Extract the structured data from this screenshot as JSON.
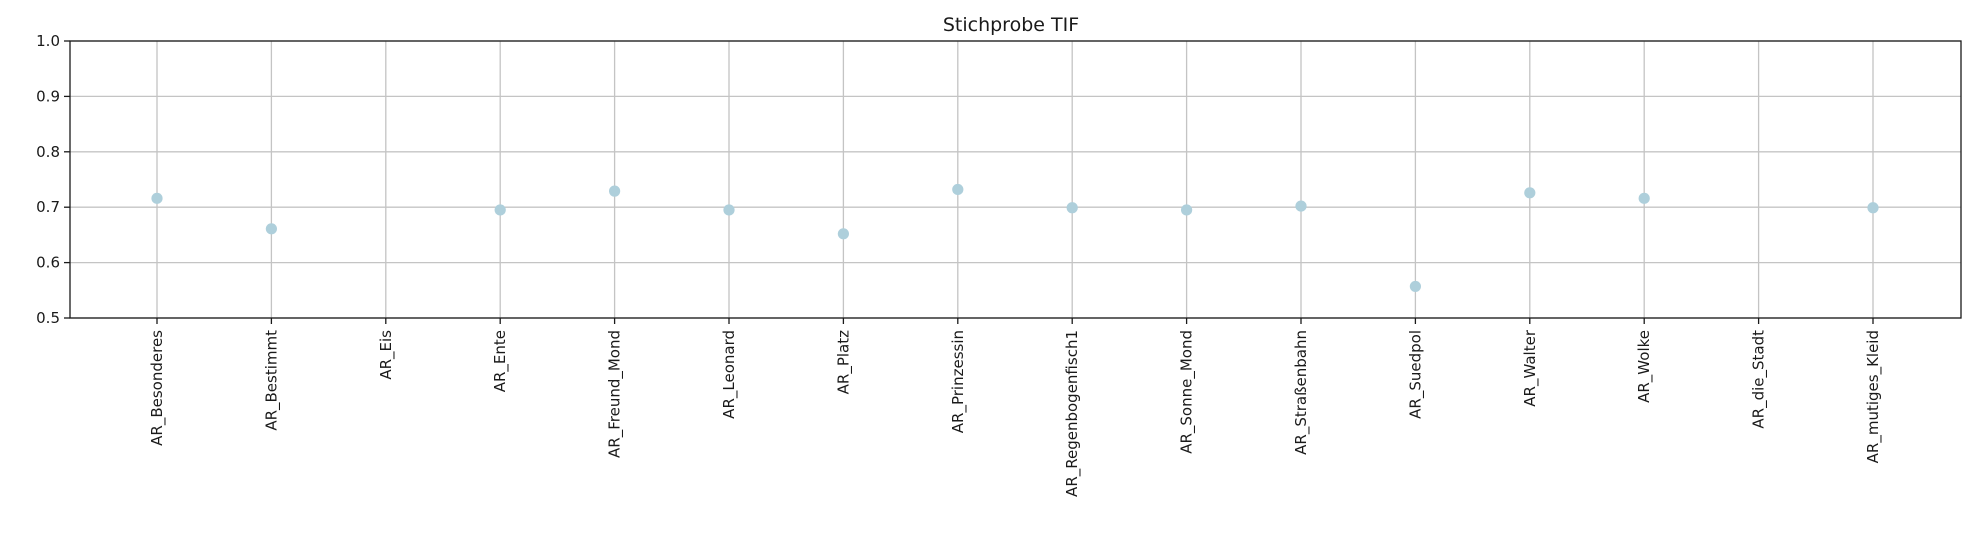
{
  "chart_data": {
    "type": "scatter",
    "title": "Stichprobe TIF",
    "xlabel": "",
    "ylabel": "",
    "categories": [
      "AR_Besonderes",
      "AR_Bestimmt",
      "AR_Eis",
      "AR_Ente",
      "AR_Freund_Mond",
      "AR_Leonard",
      "AR_Platz",
      "AR_Prinzessin",
      "AR_Regenbogenfisch1",
      "AR_Sonne_Mond",
      "AR_Straßenbahn",
      "AR_Suedpol",
      "AR_Walter",
      "AR_Wolke",
      "AR_die_Stadt",
      "AR_mutiges_Kleid"
    ],
    "values": [
      0.716,
      0.661,
      null,
      0.695,
      0.729,
      0.695,
      0.652,
      0.732,
      0.699,
      0.695,
      0.702,
      0.557,
      0.726,
      0.716,
      null,
      0.699
    ],
    "ylim": [
      0.5,
      1.0
    ],
    "yticks": [
      "0.5",
      "0.6",
      "0.7",
      "0.8",
      "0.9",
      "1.0"
    ],
    "grid": true,
    "marker_color": "#aecfdb"
  }
}
